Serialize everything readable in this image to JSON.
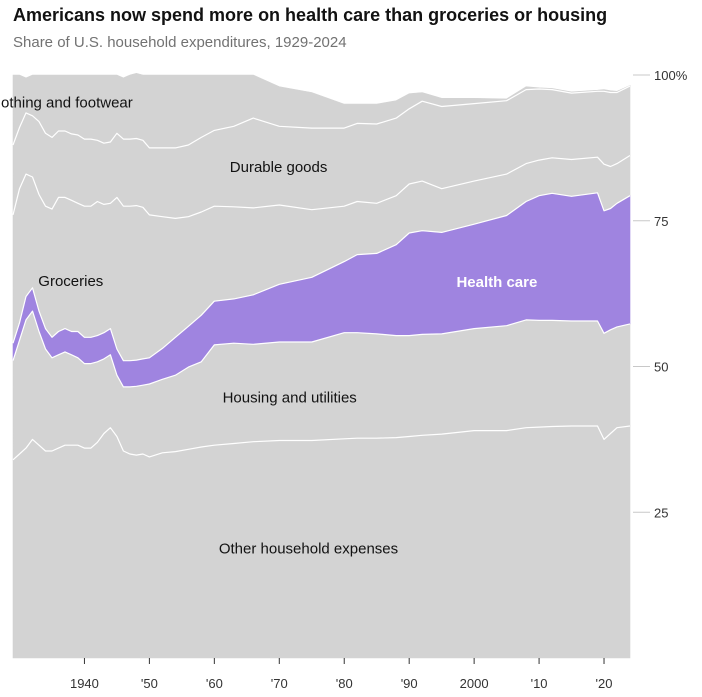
{
  "header": {
    "title": "Americans now spend more on health care than groceries or housing",
    "subtitle": "Share of U.S. household expenditures, 1929-2024"
  },
  "colors": {
    "band": "#d3d3d3",
    "boundary": "#ffffff",
    "highlight": "#9f84e0",
    "tick": "#333333"
  },
  "chart_data": {
    "type": "area",
    "stacked": true,
    "normalized_percent": true,
    "title": "Americans now spend more on health care than groceries or housing",
    "subtitle": "Share of U.S. household expenditures, 1929-2024",
    "xlim": [
      1929,
      2024
    ],
    "ylim": [
      0,
      100
    ],
    "x": [
      1929,
      1930,
      1931,
      1932,
      1933,
      1934,
      1935,
      1936,
      1937,
      1938,
      1939,
      1940,
      1941,
      1942,
      1943,
      1944,
      1945,
      1946,
      1947,
      1948,
      1949,
      1950,
      1952,
      1954,
      1956,
      1958,
      1960,
      1963,
      1966,
      1970,
      1975,
      1980,
      1982,
      1985,
      1988,
      1990,
      1992,
      1995,
      2000,
      2005,
      2008,
      2010,
      2012,
      2015,
      2019,
      2020,
      2021,
      2022,
      2024
    ],
    "series": [
      {
        "name": "Other household expenses",
        "values": [
          34,
          35,
          36,
          37.5,
          36.5,
          35.5,
          35.5,
          36,
          36.5,
          36.5,
          36.5,
          36,
          36,
          37,
          38.5,
          39.5,
          38,
          35.5,
          35,
          34.8,
          35,
          34.5,
          35.2,
          35.4,
          35.8,
          36.2,
          36.5,
          36.8,
          37.1,
          37.3,
          37.3,
          37.6,
          37.7,
          37.7,
          37.8,
          38,
          38.2,
          38.4,
          39,
          39,
          39.5,
          39.6,
          39.7,
          39.8,
          39.8,
          37.5,
          38.5,
          39.5,
          39.8
        ]
      },
      {
        "name": "Housing and utilities",
        "values": [
          17,
          19.5,
          22,
          22,
          19.5,
          17.5,
          16,
          16,
          16,
          15.5,
          15,
          14.5,
          14.5,
          13.8,
          12.8,
          12.5,
          10.5,
          11,
          11.5,
          11.8,
          11.8,
          12.5,
          12.6,
          13.1,
          14.1,
          14.6,
          17.2,
          17.2,
          16.7,
          16.9,
          16.9,
          18.2,
          18.1,
          17.9,
          17.5,
          17.3,
          17.3,
          17.2,
          17.5,
          18,
          18.5,
          18.3,
          18.2,
          18,
          18,
          18.2,
          17.8,
          17.3,
          17.5
        ]
      },
      {
        "name": "Health care",
        "values": [
          3,
          3,
          4,
          4,
          3.5,
          3.5,
          3.5,
          4,
          4,
          4,
          4.5,
          4.5,
          4.5,
          4.5,
          4.5,
          4.5,
          4.5,
          4.5,
          4.5,
          4.5,
          4.5,
          4.5,
          5.3,
          6.5,
          7,
          8,
          7.5,
          7.6,
          8.5,
          9.9,
          11.1,
          12.2,
          13.4,
          13.8,
          15.6,
          17.6,
          17.8,
          17.4,
          17.9,
          18.9,
          20.3,
          21.4,
          21.8,
          21.4,
          22,
          21,
          20.8,
          21.2,
          22
        ]
      },
      {
        "name": "Groceries",
        "values": [
          22,
          23,
          21,
          19,
          20,
          21,
          22,
          23,
          22.5,
          22.5,
          22,
          22.5,
          22.5,
          23,
          22,
          21.5,
          26,
          26.5,
          26.5,
          26.5,
          26,
          24.5,
          22.6,
          20.4,
          18.8,
          17.7,
          16.3,
          15.8,
          14.9,
          13.6,
          11.6,
          9.5,
          9.1,
          8.6,
          8.4,
          8.4,
          8.5,
          7.5,
          7.4,
          7.1,
          6.5,
          6.1,
          6.1,
          6.3,
          6.1,
          8,
          7.2,
          6.8,
          6.9
        ]
      },
      {
        "name": "Durable goods",
        "values": [
          12,
          10.5,
          10.5,
          10.5,
          12.5,
          12.5,
          12.3,
          11.4,
          11.4,
          11.4,
          11.7,
          11.5,
          11.5,
          10.5,
          10.5,
          10.5,
          11,
          11.5,
          11.5,
          11.5,
          11.5,
          11.5,
          11.8,
          12.1,
          12.3,
          12.8,
          13,
          13.8,
          15.4,
          13.5,
          14,
          13.4,
          13.4,
          13.6,
          13.3,
          12.9,
          13.7,
          14.1,
          13.3,
          12.6,
          12.7,
          12.2,
          11.7,
          11.4,
          11.3,
          12.5,
          12.7,
          12.2,
          11.9
        ]
      },
      {
        "name": "Clothing and footwear",
        "values": [
          12,
          9,
          6,
          7,
          8,
          10,
          10.7,
          9.6,
          9.6,
          10.1,
          10.3,
          11,
          11,
          11.2,
          11.7,
          11.5,
          10,
          10.5,
          11,
          11.2,
          11.2,
          12.5,
          12.5,
          12.5,
          12,
          10.7,
          9.5,
          8.8,
          7.4,
          6.8,
          6.1,
          4.1,
          3.3,
          3.4,
          3,
          2.6,
          1.5,
          1.4,
          0.9,
          0.3,
          0.5,
          0.2,
          0.2,
          0.2,
          0.2,
          0.3,
          0.3,
          0.2,
          0.1
        ]
      }
    ],
    "highlight": "Health care",
    "x_ticks": [
      {
        "value": 1940,
        "label": "1940"
      },
      {
        "value": 1950,
        "label": "'50"
      },
      {
        "value": 1960,
        "label": "'60"
      },
      {
        "value": 1970,
        "label": "'70"
      },
      {
        "value": 1980,
        "label": "'80"
      },
      {
        "value": 1990,
        "label": "'90"
      },
      {
        "value": 2000,
        "label": "2000"
      },
      {
        "value": 2010,
        "label": "'10"
      },
      {
        "value": 2020,
        "label": "'20"
      }
    ],
    "y_ticks": [
      {
        "value": 100,
        "label": "100%"
      },
      {
        "value": 75,
        "label": "75"
      },
      {
        "value": 50,
        "label": "50"
      },
      {
        "value": 25,
        "label": "25"
      }
    ],
    "band_labels": [
      {
        "series": "Clothing and footwear",
        "text": "Clothing and footwear",
        "x": 1936.2,
        "y": 95.3
      },
      {
        "series": "Durable goods",
        "text": "Durable goods",
        "x": 1969.9,
        "y": 84.2
      },
      {
        "series": "Groceries",
        "text": "Groceries",
        "x": 1937.9,
        "y": 64.7
      },
      {
        "series": "Health care",
        "text": "Health care",
        "x": 2003.5,
        "y": 64.5
      },
      {
        "series": "Housing and utilities",
        "text": "Housing and utilities",
        "x": 1971.6,
        "y": 44.7
      },
      {
        "series": "Other household expenses",
        "text": "Other household expenses",
        "x": 1974.5,
        "y": 18.8
      }
    ]
  }
}
